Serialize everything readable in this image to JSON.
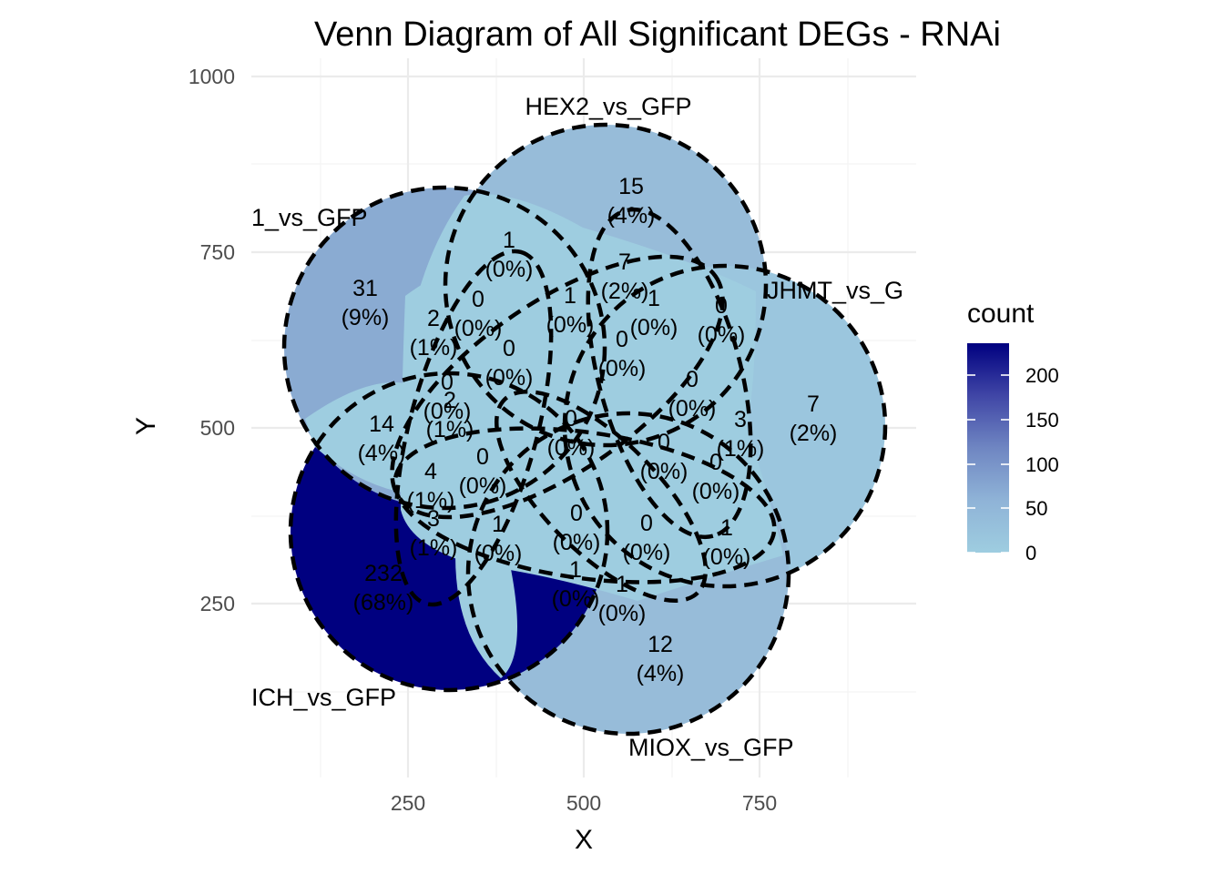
{
  "title": "Venn Diagram of All Significant DEGs - RNAi",
  "axes": {
    "x_label": "X",
    "y_label": "Y",
    "x_ticks": [
      "250",
      "500",
      "750"
    ],
    "y_ticks": [
      "250",
      "500",
      "750",
      "1000"
    ]
  },
  "sets": [
    "1_vs_GFP",
    "HEX2_vs_GFP",
    "JHMT_vs_G",
    "MIOX_vs_GFP",
    "ICH_vs_GFP"
  ],
  "legend": {
    "title": "count",
    "ticks": [
      "200",
      "150",
      "100",
      "50",
      "0"
    ],
    "colors": {
      "high": "#000080",
      "low": "#9ecde0"
    }
  },
  "regions": [
    {
      "count": "15",
      "percent": "(4%)"
    },
    {
      "count": "31",
      "percent": "(9%)"
    },
    {
      "count": "7",
      "percent": "(2%)"
    },
    {
      "count": "12",
      "percent": "(4%)"
    },
    {
      "count": "232",
      "percent": "(68%)"
    },
    {
      "count": "1",
      "percent": "(0%)"
    },
    {
      "count": "7",
      "percent": "(2%)"
    },
    {
      "count": "0",
      "percent": "(0%)"
    },
    {
      "count": "1",
      "percent": "(0%)"
    },
    {
      "count": "14",
      "percent": "(4%)"
    },
    {
      "count": "0",
      "percent": "(0%)"
    },
    {
      "count": "2",
      "percent": "(1%)"
    },
    {
      "count": "0",
      "percent": "(0%)"
    },
    {
      "count": "1",
      "percent": "(0%)"
    },
    {
      "count": "0",
      "percent": "(0%)"
    },
    {
      "count": "0",
      "percent": "(0%)"
    },
    {
      "count": "2",
      "percent": "(1%)"
    },
    {
      "count": "0",
      "percent": "(0%)"
    },
    {
      "count": "0",
      "percent": "(0%)"
    },
    {
      "count": "3",
      "percent": "(1%)"
    },
    {
      "count": "4",
      "percent": "(1%)"
    },
    {
      "count": "0",
      "percent": "(0%)"
    },
    {
      "count": "0",
      "percent": "(0%)"
    },
    {
      "count": "0",
      "percent": "(0%)"
    },
    {
      "count": "3",
      "percent": "(1%)"
    },
    {
      "count": "1",
      "percent": "(0%)"
    },
    {
      "count": "0",
      "percent": "(0%)"
    },
    {
      "count": "0",
      "percent": "(0%)"
    },
    {
      "count": "1",
      "percent": "(0%)"
    },
    {
      "count": "1",
      "percent": "(0%)"
    },
    {
      "count": "1",
      "percent": "(0%)"
    }
  ]
}
